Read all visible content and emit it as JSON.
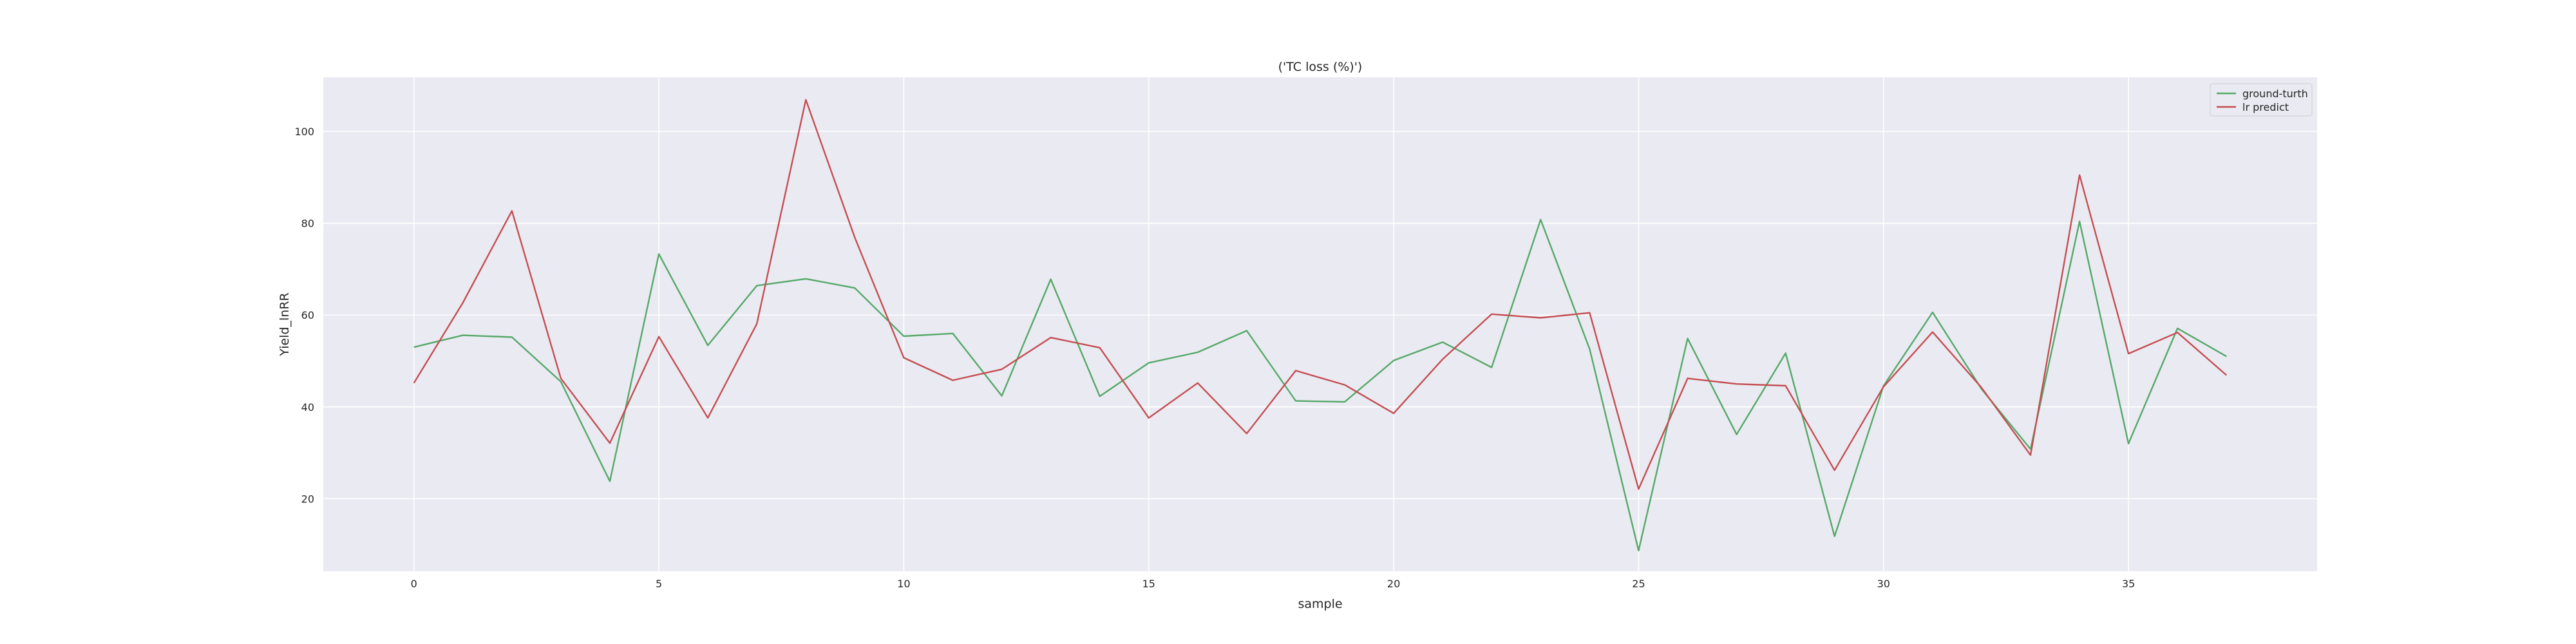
{
  "chart_data": {
    "type": "line",
    "title": "('TC loss (%)')",
    "xlabel": "sample",
    "ylabel": "Yield_lnRR",
    "xlim": [
      -1.85,
      38.85
    ],
    "ylim": [
      4.2,
      111.8
    ],
    "xticks": [
      0,
      5,
      10,
      15,
      20,
      25,
      30,
      35
    ],
    "yticks": [
      20,
      40,
      60,
      80,
      100
    ],
    "grid": true,
    "legend_position": "top-right",
    "x": [
      0,
      1,
      2,
      3,
      4,
      5,
      6,
      7,
      8,
      9,
      10,
      11,
      12,
      13,
      14,
      15,
      16,
      17,
      18,
      19,
      20,
      21,
      22,
      23,
      24,
      25,
      26,
      27,
      28,
      29,
      30,
      31,
      32,
      33,
      34,
      35,
      36,
      37
    ],
    "series": [
      {
        "name": "ground-turth",
        "color": "#55a868",
        "values": [
          53,
          55.6,
          55.2,
          45.5,
          23.8,
          73.3,
          53.4,
          66.4,
          67.9,
          65.9,
          55.4,
          56,
          42.4,
          67.8,
          42.3,
          49.6,
          51.9,
          56.6,
          41.3,
          41.1,
          50.1,
          54.1,
          48.6,
          80.8,
          52.6,
          8.7,
          54.9,
          34,
          51.7,
          11.8,
          44.6,
          60.6,
          43.9,
          30.8,
          80.4,
          32,
          57.1,
          51
        ]
      },
      {
        "name": "lr predict",
        "color": "#c44e52",
        "values": [
          45.2,
          62.7,
          82.7,
          46.2,
          32.1,
          55.3,
          37.6,
          58.1,
          106.9,
          76.9,
          50.7,
          45.8,
          48.2,
          55.1,
          52.9,
          37.6,
          45.2,
          34.2,
          47.9,
          44.8,
          38.6,
          50.4,
          60.2,
          59.4,
          60.5,
          22.1,
          46.2,
          45,
          44.6,
          26.2,
          44.4,
          56.3,
          44.2,
          29.5,
          90.5,
          51.6,
          56.2,
          46.9
        ]
      }
    ]
  }
}
